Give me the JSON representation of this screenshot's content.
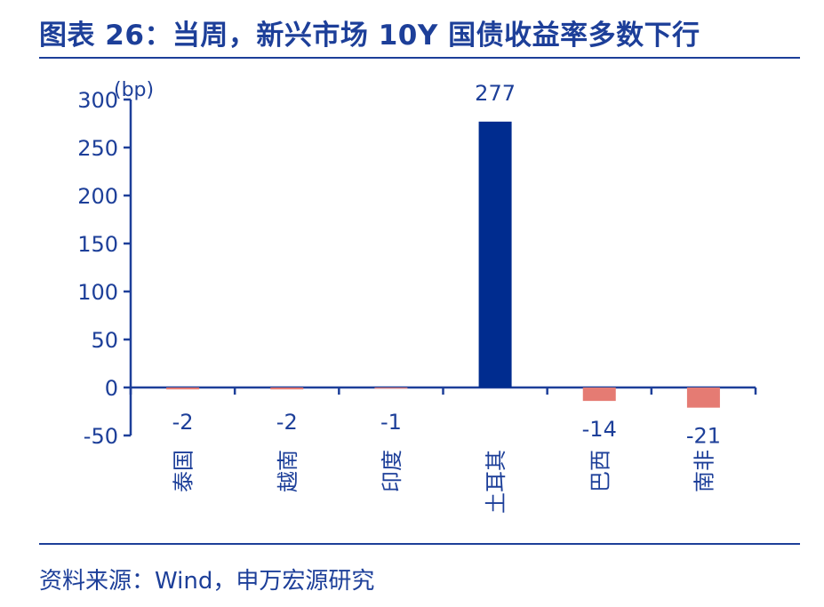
{
  "header": {
    "title": "图表 26：当周，新兴市场 10Y 国债收益率多数下行"
  },
  "footer": {
    "source": "资料来源：Wind，申万宏源研究"
  },
  "colors": {
    "accent": "#1d3f99",
    "positive_bar": "#002c8f",
    "negative_bar": "#e57b73"
  },
  "chart_data": {
    "type": "bar",
    "title": "",
    "xlabel": "",
    "ylabel": "(bp)",
    "ylim": [
      -50,
      300
    ],
    "yticks": [
      -50,
      0,
      50,
      100,
      150,
      200,
      250,
      300
    ],
    "grid": false,
    "categories": [
      "泰国",
      "越南",
      "印度",
      "土耳其",
      "巴西",
      "南非"
    ],
    "values": [
      -2,
      -2,
      -1,
      277,
      -14,
      -21
    ],
    "data_labels": [
      "-2",
      "-2",
      "-1",
      "277",
      "-14",
      "-21"
    ]
  }
}
